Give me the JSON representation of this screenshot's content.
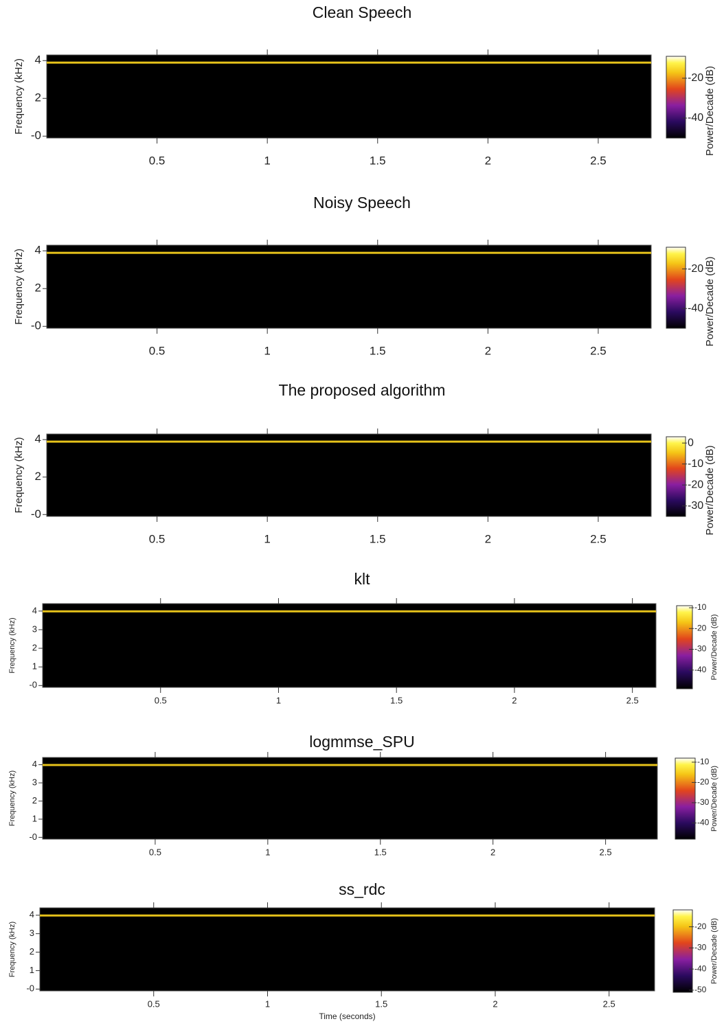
{
  "chart_data": [
    {
      "type": "spectrogram",
      "title": "Clean Speech",
      "ylabel": "Frequency (kHz)",
      "colorbar_label": "Power/Decade (dB)",
      "xlim": [
        0,
        2.74
      ],
      "xticks": [
        0.5,
        1,
        1.5,
        2,
        2.5
      ],
      "ylim": [
        -0.1,
        4.3
      ],
      "yticks": [
        {
          "value": 0,
          "label": "-0"
        },
        2,
        4
      ],
      "clim": [
        -50,
        -9
      ],
      "cticks": [
        -20,
        -40
      ]
    },
    {
      "type": "spectrogram",
      "title": "Noisy Speech",
      "ylabel": "Frequency (kHz)",
      "colorbar_label": "Power/Decade (dB)",
      "xlim": [
        0,
        2.74
      ],
      "xticks": [
        0.5,
        1,
        1.5,
        2,
        2.5
      ],
      "ylim": [
        -0.1,
        4.3
      ],
      "yticks": [
        {
          "value": 0,
          "label": "-0"
        },
        2,
        4
      ],
      "clim": [
        -50,
        -9
      ],
      "cticks": [
        -20,
        -40
      ]
    },
    {
      "type": "spectrogram",
      "title": "The proposed algorithm",
      "ylabel": "Frequency (kHz)",
      "colorbar_label": "Power/Decade (dB)",
      "xlim": [
        0,
        2.74
      ],
      "xticks": [
        0.5,
        1,
        1.5,
        2,
        2.5
      ],
      "ylim": [
        -0.1,
        4.3
      ],
      "yticks": [
        {
          "value": 0,
          "label": "-0"
        },
        2,
        4
      ],
      "clim": [
        -35,
        3
      ],
      "cticks": [
        0,
        -10,
        -20,
        -30
      ]
    },
    {
      "type": "spectrogram",
      "title": "klt",
      "ylabel": "Frequency (kHz)",
      "colorbar_label": "Power/Decade (dB)",
      "xlim": [
        0,
        2.6
      ],
      "xticks": [
        0.5,
        1,
        1.5,
        2,
        2.5
      ],
      "ylim": [
        -0.1,
        4.4
      ],
      "yticks": [
        {
          "value": 0,
          "label": "-0"
        },
        1,
        2,
        3,
        4
      ],
      "clim": [
        -49,
        -9
      ],
      "cticks": [
        -10,
        -20,
        -30,
        -40
      ]
    },
    {
      "type": "spectrogram",
      "title": "logmmse_SPU",
      "ylabel": "Frequency (kHz)",
      "colorbar_label": "Power/Decade (dB)",
      "xlim": [
        0,
        2.73
      ],
      "xticks": [
        0.5,
        1,
        1.5,
        2,
        2.5
      ],
      "ylim": [
        -0.1,
        4.4
      ],
      "yticks": [
        {
          "value": 0,
          "label": "-0"
        },
        1,
        2,
        3,
        4
      ],
      "clim": [
        -48,
        -8
      ],
      "cticks": [
        -10,
        -20,
        -30,
        -40
      ]
    },
    {
      "type": "spectrogram",
      "title": "ss_rdc",
      "ylabel": "Frequency (kHz)",
      "colorbar_label": "Power/Decade (dB)",
      "xlabel": "Time (seconds)",
      "xlim": [
        0,
        2.7
      ],
      "xticks": [
        0.5,
        1,
        1.5,
        2,
        2.5
      ],
      "ylim": [
        -0.1,
        4.4
      ],
      "yticks": [
        {
          "value": 0,
          "label": "-0"
        },
        1,
        2,
        3,
        4
      ],
      "clim": [
        -51,
        -12
      ],
      "cticks": [
        -20,
        -30,
        -40,
        -50
      ]
    }
  ]
}
